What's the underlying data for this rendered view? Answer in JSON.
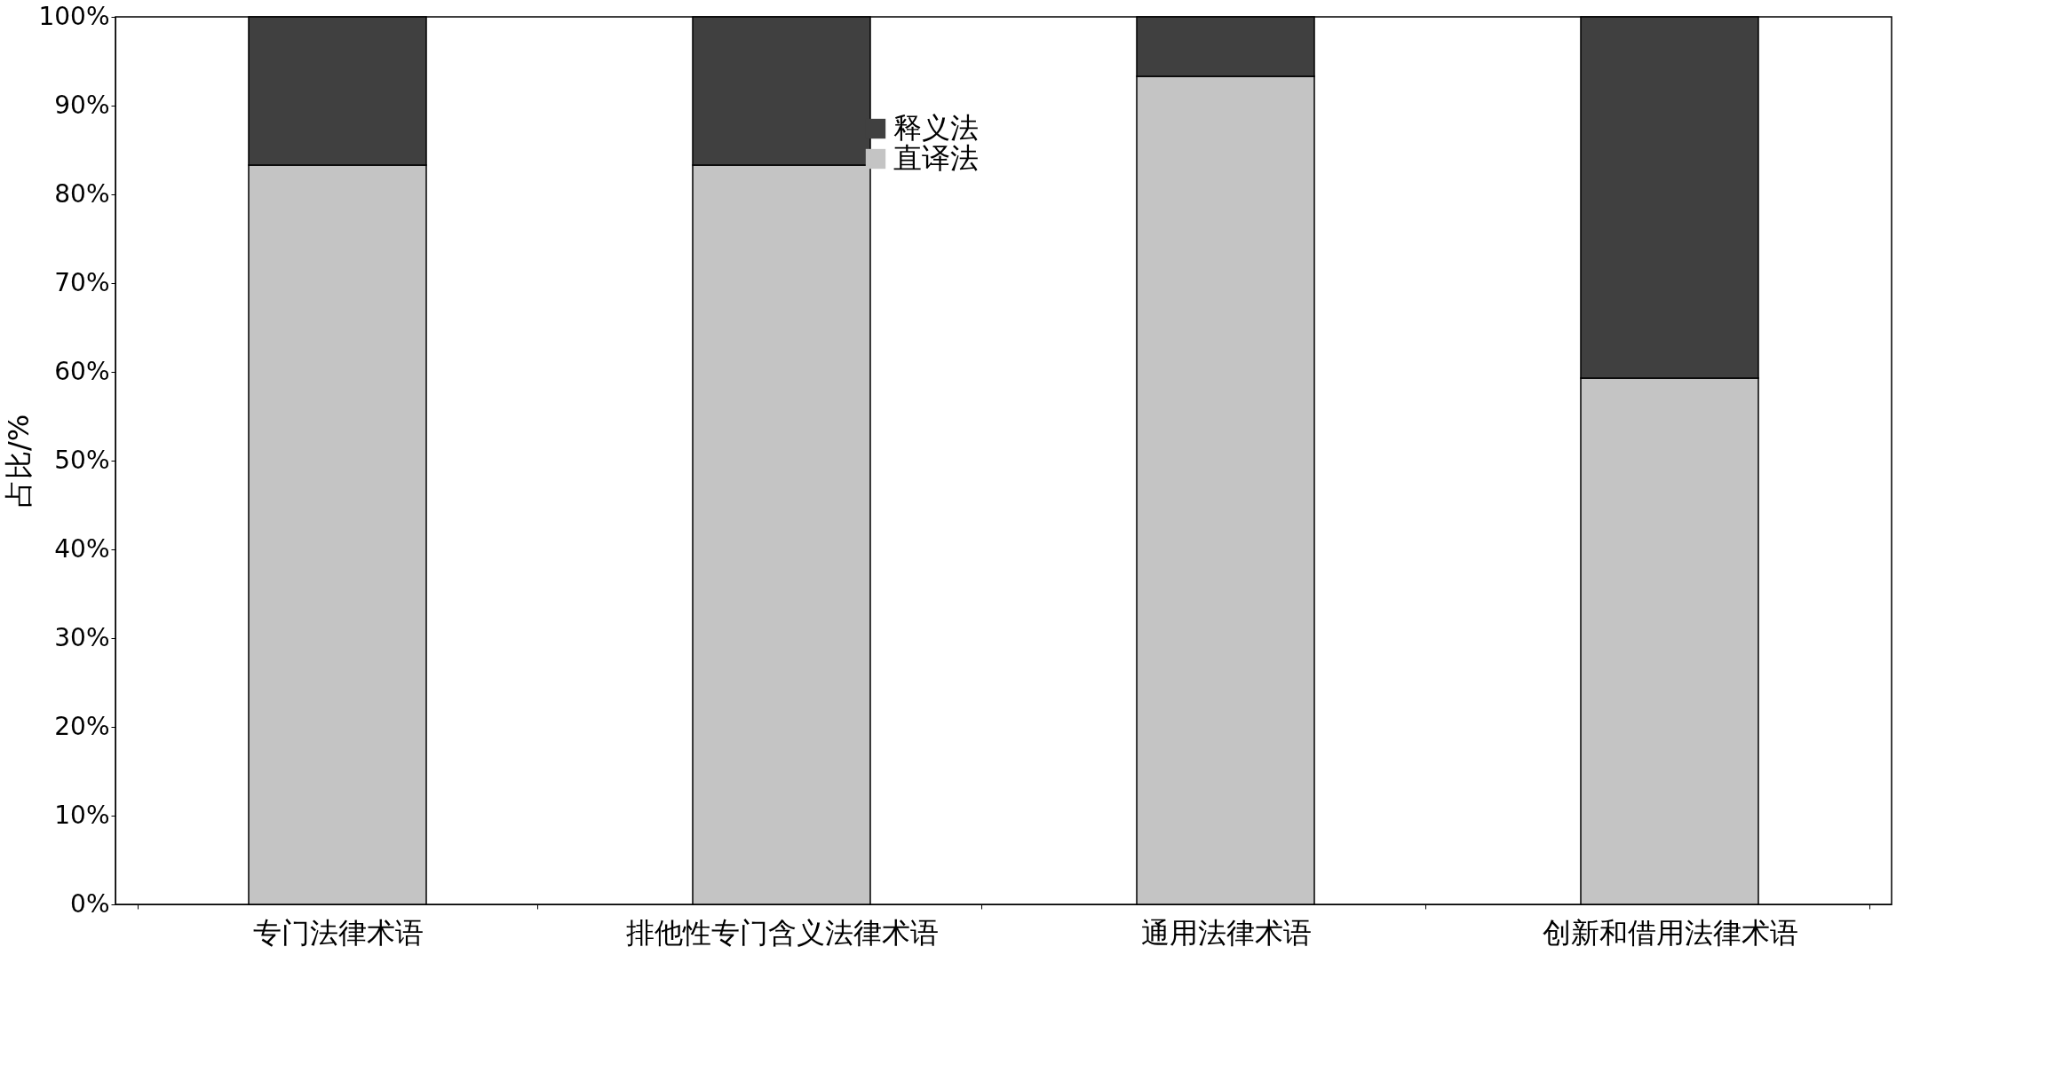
{
  "chart_data": {
    "type": "bar",
    "stacked": true,
    "ylabel": "占比/%",
    "categories": [
      "专门法律术语",
      "排他性专门含义法律术语",
      "通用法律术语",
      "创新和借用法律术语"
    ],
    "series": [
      {
        "name": "直译法",
        "color": "#c4c4c4",
        "values": [
          83.3,
          83.3,
          93.3,
          59.3
        ]
      },
      {
        "name": "释义法",
        "color": "#404040",
        "values": [
          16.7,
          16.7,
          6.7,
          40.7
        ]
      }
    ],
    "ylim": [
      0,
      100
    ],
    "yticks": [
      {
        "value": 0,
        "label": "0%"
      },
      {
        "value": 10,
        "label": "10%"
      },
      {
        "value": 20,
        "label": "20%"
      },
      {
        "value": 30,
        "label": "30%"
      },
      {
        "value": 40,
        "label": "40%"
      },
      {
        "value": 50,
        "label": "50%"
      },
      {
        "value": 60,
        "label": "60%"
      },
      {
        "value": 70,
        "label": "70%"
      },
      {
        "value": 80,
        "label": "80%"
      },
      {
        "value": 90,
        "label": "90%"
      },
      {
        "value": 100,
        "label": "100%"
      }
    ],
    "grid": false,
    "legend": "top"
  }
}
